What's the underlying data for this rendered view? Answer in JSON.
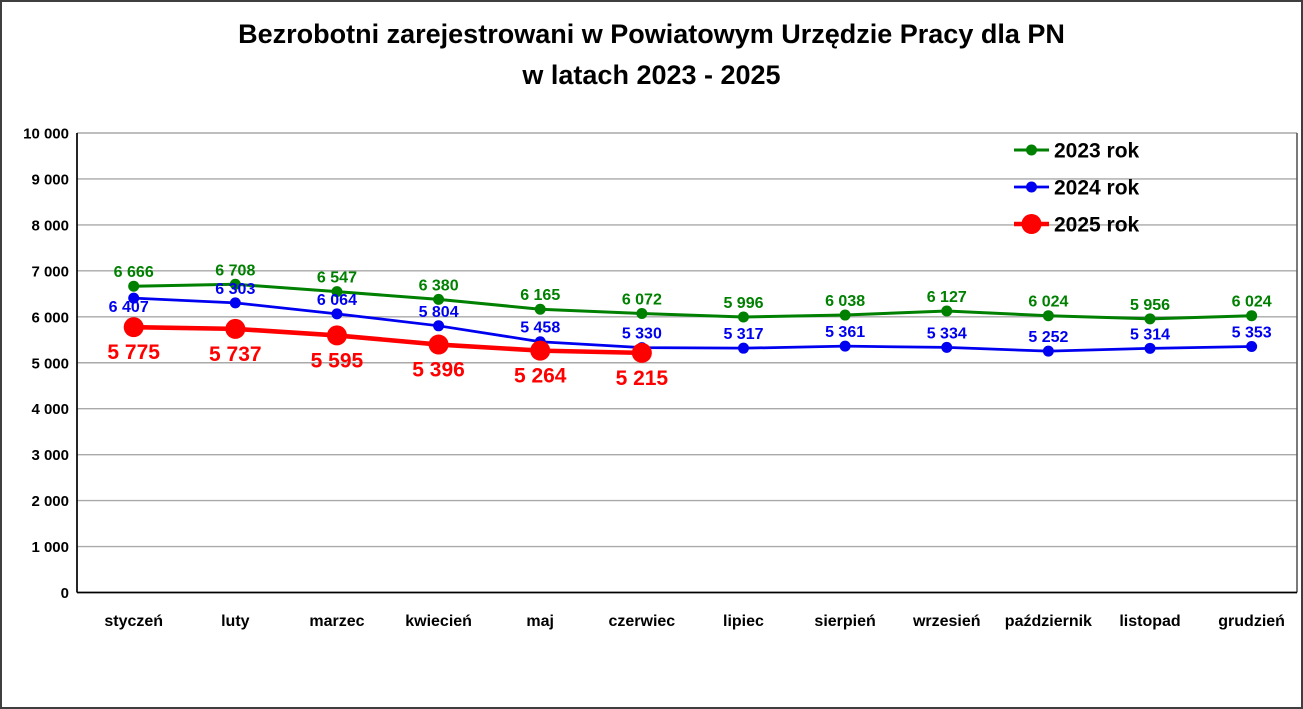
{
  "title": {
    "line1": "Bezrobotni zarejestrowani w Powiatowym Urzędzie Pracy dla PN",
    "line2": "w latach 2023 - 2025"
  },
  "chart_data": {
    "type": "line",
    "title": "Bezrobotni zarejestrowani w Powiatowym Urzędzie Pracy dla PN w latach 2023 - 2025",
    "categories": [
      "styczeń",
      "luty",
      "marzec",
      "kwiecień",
      "maj",
      "czerwiec",
      "lipiec",
      "sierpień",
      "wrzesień",
      "październik",
      "listopad",
      "grudzień"
    ],
    "series": [
      {
        "name": "2023 rok",
        "color": "#008000",
        "values": [
          6666,
          6708,
          6547,
          6380,
          6165,
          6072,
          5996,
          6038,
          6127,
          6024,
          5956,
          6024
        ]
      },
      {
        "name": "2024 rok",
        "color": "#0000F0",
        "values": [
          6407,
          6303,
          6064,
          5804,
          5458,
          5330,
          5317,
          5361,
          5334,
          5252,
          5314,
          5353
        ]
      },
      {
        "name": "2025 rok",
        "color": "#FF0000",
        "values": [
          5775,
          5737,
          5595,
          5396,
          5264,
          5215
        ]
      }
    ],
    "xlabel": "",
    "ylabel": "",
    "ylim": [
      0,
      10000
    ],
    "ytick_step": 1000,
    "ytick_labels": [
      "0",
      "1 000",
      "2 000",
      "3 000",
      "4 000",
      "5 000",
      "6 000",
      "7 000",
      "8 000",
      "9 000",
      "10 000"
    ],
    "grid": true,
    "data_labels": true,
    "legend_position": "top-right"
  },
  "styles": {
    "grid_color": "#A9A9A9",
    "axis_color": "#000000",
    "plot_border_color": "#595959",
    "text_color": "#000000",
    "background": "#FFFFFF"
  }
}
